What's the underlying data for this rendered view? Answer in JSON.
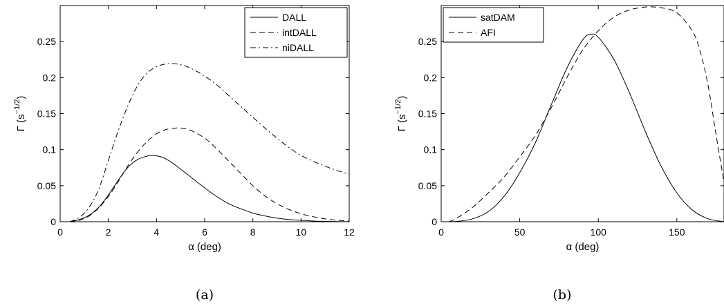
{
  "chart_data": [
    {
      "type": "line",
      "panel": "(a)",
      "xlabel": "α (deg)",
      "ylabel_main": "Γ (s",
      "ylabel_sup": "−1/2",
      "ylabel_end": ")",
      "xlim": [
        0,
        12
      ],
      "ylim": [
        0,
        0.3
      ],
      "xticks": [
        0,
        2,
        4,
        6,
        8,
        10,
        12
      ],
      "yticks": [
        0,
        0.05,
        0.1,
        0.15,
        0.2,
        0.25
      ],
      "grid": false,
      "legend_position": "top-right",
      "series": [
        {
          "name": "DALL",
          "style": "solid",
          "x": [
            0.4,
            0.8,
            1.2,
            1.6,
            2.0,
            2.4,
            2.8,
            3.2,
            3.6,
            3.8,
            4.2,
            4.6,
            5.0,
            5.5,
            6.0,
            6.5,
            7.0,
            7.5,
            8.0,
            8.5,
            9.0,
            9.5,
            10.0,
            10.5,
            11.0,
            11.5,
            12.0
          ],
          "y": [
            0.0,
            0.003,
            0.009,
            0.02,
            0.037,
            0.057,
            0.075,
            0.086,
            0.091,
            0.092,
            0.09,
            0.083,
            0.073,
            0.06,
            0.047,
            0.035,
            0.025,
            0.018,
            0.012,
            0.008,
            0.005,
            0.003,
            0.002,
            0.001,
            0.0005,
            0.0002,
            0.0001
          ]
        },
        {
          "name": "intDALL",
          "style": "dashed",
          "x": [
            0.4,
            0.8,
            1.2,
            1.6,
            2.0,
            2.4,
            2.8,
            3.2,
            3.6,
            4.0,
            4.4,
            4.8,
            5.0,
            5.4,
            6.0,
            6.5,
            7.0,
            7.5,
            8.0,
            8.5,
            9.0,
            9.5,
            10.0,
            10.5,
            11.0,
            11.5,
            12.0
          ],
          "y": [
            0.0,
            0.002,
            0.008,
            0.019,
            0.035,
            0.055,
            0.077,
            0.096,
            0.111,
            0.122,
            0.128,
            0.13,
            0.13,
            0.127,
            0.116,
            0.101,
            0.084,
            0.067,
            0.05,
            0.036,
            0.025,
            0.017,
            0.011,
            0.007,
            0.004,
            0.002,
            0.001
          ]
        },
        {
          "name": "niDALL",
          "style": "dashdot",
          "x": [
            0.4,
            0.8,
            1.2,
            1.6,
            2.0,
            2.4,
            2.8,
            3.2,
            3.6,
            4.0,
            4.4,
            4.8,
            5.2,
            5.6,
            6.0,
            6.5,
            7.0,
            7.5,
            8.0,
            8.5,
            9.0,
            9.5,
            10.0,
            10.5,
            11.0,
            11.5,
            12.0
          ],
          "y": [
            0.0,
            0.006,
            0.02,
            0.045,
            0.085,
            0.125,
            0.16,
            0.188,
            0.206,
            0.215,
            0.219,
            0.219,
            0.216,
            0.21,
            0.202,
            0.19,
            0.175,
            0.16,
            0.145,
            0.13,
            0.116,
            0.103,
            0.092,
            0.084,
            0.077,
            0.071,
            0.066
          ]
        }
      ]
    },
    {
      "type": "line",
      "panel": "(b)",
      "xlabel": "α (deg)",
      "ylabel_main": "Γ (s",
      "ylabel_sup": "−1/2",
      "ylabel_end": ")",
      "xlim": [
        0,
        180
      ],
      "ylim": [
        0,
        0.3
      ],
      "xticks": [
        0,
        50,
        100,
        150
      ],
      "yticks": [
        0,
        0.05,
        0.1,
        0.15,
        0.2,
        0.25
      ],
      "grid": false,
      "legend_position": "top-left",
      "series": [
        {
          "name": "satDAM",
          "style": "solid",
          "x": [
            0,
            10,
            20,
            30,
            40,
            50,
            60,
            70,
            80,
            90,
            95,
            100,
            110,
            120,
            130,
            140,
            150,
            160,
            170,
            180
          ],
          "y": [
            0.0,
            0.0005,
            0.004,
            0.014,
            0.035,
            0.068,
            0.11,
            0.162,
            0.213,
            0.252,
            0.26,
            0.256,
            0.225,
            0.178,
            0.125,
            0.077,
            0.04,
            0.016,
            0.004,
            0.0
          ]
        },
        {
          "name": "AFI",
          "style": "dashed",
          "x": [
            5,
            10,
            20,
            30,
            40,
            50,
            60,
            70,
            80,
            90,
            100,
            110,
            120,
            130,
            135,
            140,
            150,
            160,
            165,
            170,
            175,
            180
          ],
          "y": [
            0.0,
            0.005,
            0.02,
            0.04,
            0.062,
            0.09,
            0.12,
            0.158,
            0.2,
            0.238,
            0.265,
            0.284,
            0.294,
            0.298,
            0.298,
            0.297,
            0.29,
            0.264,
            0.235,
            0.188,
            0.12,
            0.055
          ]
        }
      ]
    }
  ],
  "captions": [
    "(a)",
    "(b)"
  ]
}
